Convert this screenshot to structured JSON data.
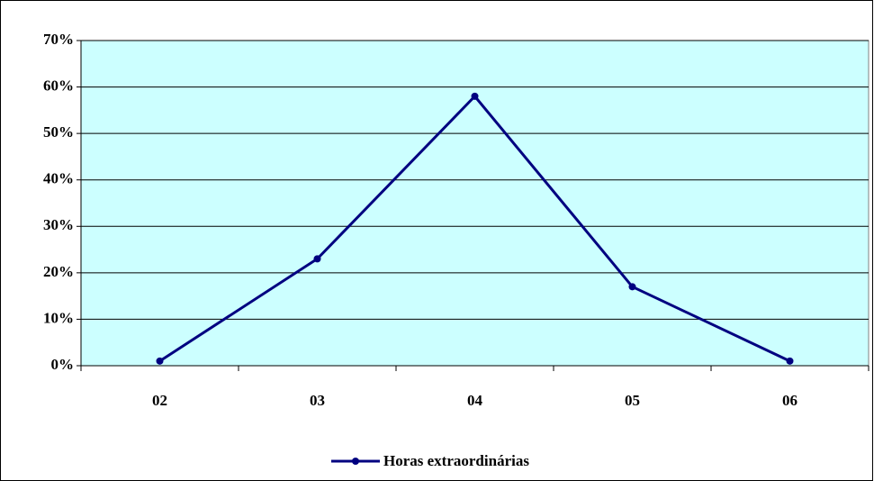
{
  "chart_data": {
    "type": "line",
    "categories": [
      "02",
      "03",
      "04",
      "05",
      "06"
    ],
    "series": [
      {
        "name": "Horas extraordinárias",
        "color": "#000080",
        "values": [
          1,
          23,
          58,
          17,
          1
        ]
      }
    ],
    "ylim": [
      0,
      70
    ],
    "yticks": [
      {
        "value": 0,
        "label": "0%"
      },
      {
        "value": 10,
        "label": "10%"
      },
      {
        "value": 20,
        "label": "20%"
      },
      {
        "value": 30,
        "label": "30%"
      },
      {
        "value": 40,
        "label": "40%"
      },
      {
        "value": 50,
        "label": "50%"
      },
      {
        "value": 60,
        "label": "60%"
      },
      {
        "value": 70,
        "label": "70%"
      }
    ],
    "grid": true,
    "plot_background": "#ccffff",
    "legend": "bottom"
  }
}
